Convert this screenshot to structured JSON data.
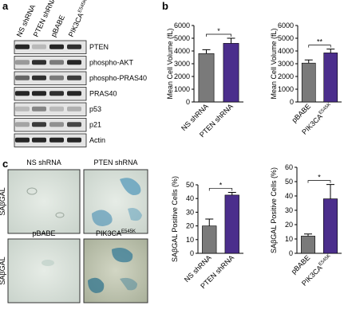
{
  "panel_labels": [
    "a",
    "b",
    "c"
  ],
  "blot": {
    "lanes": [
      {
        "text": "NS shRNA"
      },
      {
        "text": "PTEN shRNA"
      },
      {
        "text": "pBABE"
      },
      {
        "text": "PIK3CA",
        "sup": "E545K"
      }
    ],
    "rows": [
      "PTEN",
      "phospho-AKT",
      "phospho-PRAS40",
      "PRAS40",
      "p53",
      "p21",
      "Actin"
    ]
  },
  "images": {
    "labels": [
      "NS shRNA",
      "PTEN shRNA",
      "pBABE",
      "PIK3CA"
    ],
    "label_sup": "E545K",
    "row_labels": [
      "SAβGAL",
      "SAβGAL"
    ]
  },
  "chart_data": [
    {
      "type": "bar",
      "y_label": "Mean Cell Volume (fL)",
      "categories": [
        "NS shRNA",
        "PTEN shRNA"
      ],
      "superscripts": [
        null,
        null
      ],
      "values": [
        3800,
        4600
      ],
      "errors": [
        300,
        400
      ],
      "colors": [
        "#7a7a7a",
        "#4b2e8c"
      ],
      "ylim": [
        0,
        6000
      ],
      "yticks": [
        0,
        1000,
        2000,
        3000,
        4000,
        5000,
        6000
      ],
      "significance": "*"
    },
    {
      "type": "bar",
      "y_label": "Mean Cell Volume (fL)",
      "categories": [
        "pBABE",
        "PIK3CA"
      ],
      "superscripts": [
        null,
        "E545K"
      ],
      "values": [
        3050,
        3850
      ],
      "errors": [
        250,
        300
      ],
      "colors": [
        "#7a7a7a",
        "#4b2e8c"
      ],
      "ylim": [
        0,
        6000
      ],
      "yticks": [
        0,
        1000,
        2000,
        3000,
        4000,
        5000,
        6000
      ],
      "significance": "**"
    },
    {
      "type": "bar",
      "y_label": "SAβGAL Positive Cells (%)",
      "categories": [
        "NS shRNA",
        "PTEN shRNA"
      ],
      "superscripts": [
        null,
        null
      ],
      "values": [
        20,
        42.5
      ],
      "errors": [
        5,
        2
      ],
      "colors": [
        "#7a7a7a",
        "#4b2e8c"
      ],
      "ylim": [
        0,
        50
      ],
      "yticks": [
        0,
        10,
        20,
        30,
        40,
        50
      ],
      "significance": "*"
    },
    {
      "type": "bar",
      "y_label": "SAβGAL Positive Cells (%)",
      "categories": [
        "pBABE",
        "PIK3CA"
      ],
      "superscripts": [
        null,
        "E545K"
      ],
      "values": [
        12,
        38
      ],
      "errors": [
        1.5,
        10
      ],
      "colors": [
        "#7a7a7a",
        "#4b2e8c"
      ],
      "ylim": [
        0,
        60
      ],
      "yticks": [
        0,
        10,
        20,
        30,
        40,
        50,
        60
      ],
      "significance": "*"
    }
  ]
}
